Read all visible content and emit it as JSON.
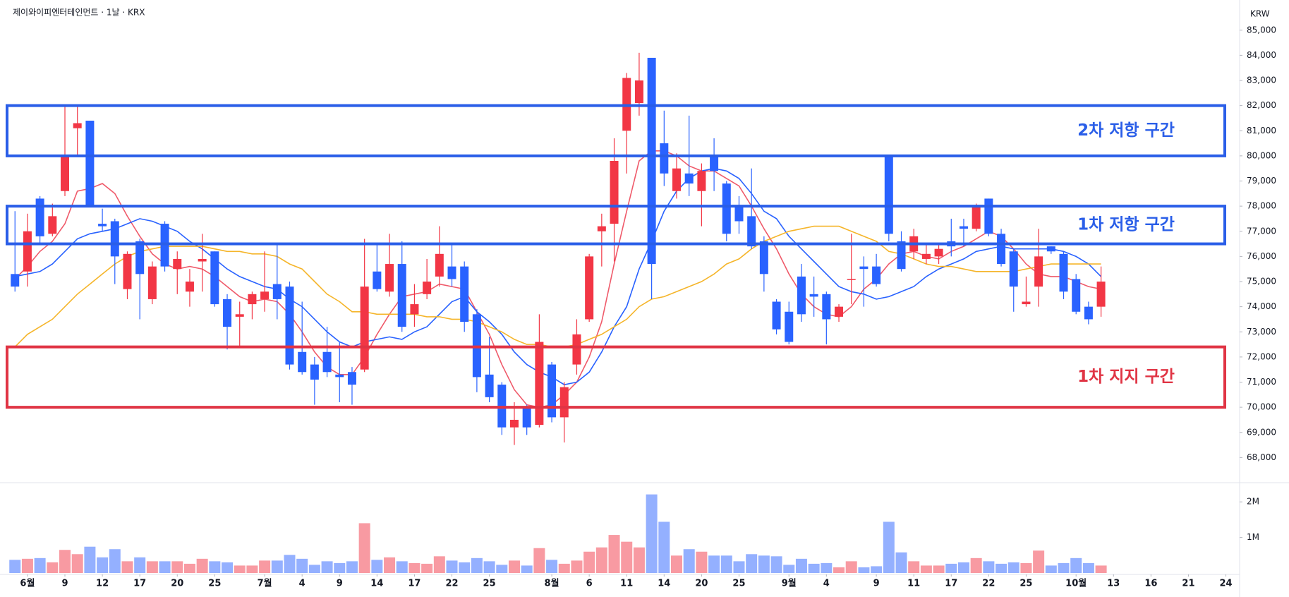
{
  "chart_data": {
    "type": "candlestick",
    "header": "제이와이피엔터테인먼트 · 1날 · KRX",
    "currency": "KRW",
    "up_color": "#f23645",
    "down_color": "#2962ff",
    "xlim": [
      -1.2,
      98.1
    ],
    "ylim": [
      67000,
      86200
    ],
    "volume_lim": [
      0,
      2500000
    ],
    "xticks": [
      {
        "value": 1,
        "label": "6월"
      },
      {
        "value": 4,
        "label": "9"
      },
      {
        "value": 7,
        "label": "12"
      },
      {
        "value": 10,
        "label": "17"
      },
      {
        "value": 13,
        "label": "20"
      },
      {
        "value": 16,
        "label": "25"
      },
      {
        "value": 20,
        "label": "7월"
      },
      {
        "value": 23,
        "label": "4"
      },
      {
        "value": 26,
        "label": "9"
      },
      {
        "value": 29,
        "label": "14"
      },
      {
        "value": 32,
        "label": "17"
      },
      {
        "value": 35,
        "label": "22"
      },
      {
        "value": 38,
        "label": "25"
      },
      {
        "value": 43,
        "label": "8월"
      },
      {
        "value": 46,
        "label": "6"
      },
      {
        "value": 49,
        "label": "11"
      },
      {
        "value": 52,
        "label": "14"
      },
      {
        "value": 55,
        "label": "20"
      },
      {
        "value": 58,
        "label": "25"
      },
      {
        "value": 62,
        "label": "9월"
      },
      {
        "value": 65,
        "label": "4"
      },
      {
        "value": 69,
        "label": "9"
      },
      {
        "value": 72,
        "label": "11"
      },
      {
        "value": 75,
        "label": "17"
      },
      {
        "value": 78,
        "label": "22"
      },
      {
        "value": 81,
        "label": "25"
      },
      {
        "value": 85,
        "label": "10월"
      },
      {
        "value": 88,
        "label": "13"
      },
      {
        "value": 91,
        "label": "16"
      },
      {
        "value": 94,
        "label": "21"
      },
      {
        "value": 97,
        "label": "24"
      }
    ],
    "yticks": [
      {
        "value": 68000,
        "label": "68,000"
      },
      {
        "value": 69000,
        "label": "69,000"
      },
      {
        "value": 70000,
        "label": "70,000"
      },
      {
        "value": 71000,
        "label": "71,000"
      },
      {
        "value": 72000,
        "label": "72,000"
      },
      {
        "value": 73000,
        "label": "73,000"
      },
      {
        "value": 74000,
        "label": "74,000"
      },
      {
        "value": 75000,
        "label": "75,000"
      },
      {
        "value": 76000,
        "label": "76,000"
      },
      {
        "value": 77000,
        "label": "77,000"
      },
      {
        "value": 78000,
        "label": "78,000"
      },
      {
        "value": 79000,
        "label": "79,000"
      },
      {
        "value": 80000,
        "label": "80,000"
      },
      {
        "value": 81000,
        "label": "81,000"
      },
      {
        "value": 82000,
        "label": "82,000"
      },
      {
        "value": 83000,
        "label": "83,000"
      },
      {
        "value": 84000,
        "label": "84,000"
      },
      {
        "value": 85000,
        "label": "85,000"
      }
    ],
    "volume_ticks": [
      {
        "value": 1000000,
        "label": "1M"
      },
      {
        "value": 2000000,
        "label": "2M"
      }
    ],
    "open": [
      75300,
      75400,
      78300,
      76900,
      78600,
      81100,
      81400,
      77300,
      77400,
      74700,
      76600,
      74300,
      77300,
      75500,
      74600,
      75800,
      76200,
      74300,
      73600,
      74100,
      74300,
      74900,
      74800,
      72200,
      71700,
      72200,
      71300,
      71400,
      71500,
      75400,
      74600,
      75700,
      73700,
      74500,
      75200,
      75600,
      75600,
      73700,
      71300,
      70900,
      69200,
      70000,
      69300,
      71700,
      69600,
      71700,
      73500,
      77000,
      77300,
      81000,
      82100,
      83900,
      80500,
      78600,
      79300,
      78600,
      80000,
      78900,
      78000,
      77600,
      76600,
      74200,
      73800,
      75200,
      74500,
      74500,
      73600,
      75100,
      75600,
      75600,
      80000,
      76600,
      76200,
      75900,
      76000,
      76600,
      77200,
      77100,
      78300,
      76900,
      76200,
      74100,
      74800,
      76400,
      76100,
      75100,
      74000,
      74000
    ],
    "high": [
      77800,
      77700,
      78400,
      78100,
      82000,
      82000,
      81400,
      77900,
      77500,
      76200,
      76700,
      75800,
      77400,
      76200,
      75500,
      76900,
      76200,
      74500,
      74200,
      74600,
      76200,
      76500,
      75000,
      74200,
      72000,
      73200,
      72600,
      71600,
      76700,
      76500,
      76900,
      76600,
      74900,
      75900,
      77200,
      76500,
      75800,
      73900,
      72800,
      71000,
      70200,
      70100,
      73700,
      71800,
      71000,
      73500,
      76100,
      77700,
      80700,
      83300,
      84100,
      83900,
      81800,
      80100,
      81600,
      79700,
      80700,
      79000,
      78400,
      79500,
      76800,
      74300,
      74200,
      75700,
      75200,
      74600,
      74100,
      76900,
      76000,
      76100,
      80000,
      77000,
      77100,
      76500,
      76500,
      77500,
      77500,
      78100,
      78300,
      77100,
      76300,
      75200,
      77100,
      76400,
      76200,
      75300,
      74200,
      75600
    ],
    "low": [
      74600,
      74800,
      76500,
      76800,
      78400,
      80000,
      78000,
      77000,
      74900,
      74300,
      73500,
      74100,
      75400,
      74500,
      74000,
      74600,
      74000,
      72300,
      72400,
      73500,
      73800,
      73500,
      71500,
      71300,
      70100,
      71200,
      70200,
      70100,
      71400,
      74600,
      74400,
      73000,
      73200,
      74300,
      74800,
      74800,
      73000,
      70600,
      70200,
      68900,
      68500,
      68900,
      69200,
      69400,
      68600,
      71300,
      73400,
      75600,
      75800,
      79300,
      81600,
      74300,
      78800,
      78300,
      78400,
      77200,
      78600,
      76600,
      76900,
      76300,
      74600,
      72900,
      72500,
      73400,
      73600,
      72500,
      73400,
      74100,
      74000,
      74800,
      76600,
      75400,
      75900,
      75700,
      75700,
      76000,
      76400,
      77000,
      76800,
      75600,
      73800,
      74000,
      74000,
      76100,
      74300,
      73700,
      73300,
      73600
    ],
    "close": [
      74800,
      77000,
      76800,
      77600,
      80000,
      81300,
      78000,
      77200,
      76000,
      76100,
      75300,
      75600,
      75600,
      75900,
      75000,
      75900,
      74100,
      73200,
      73700,
      74500,
      74600,
      74300,
      71700,
      71400,
      71100,
      71400,
      71200,
      70900,
      74800,
      74700,
      75700,
      73200,
      74100,
      75000,
      76100,
      75100,
      73400,
      71200,
      70400,
      69200,
      69500,
      69200,
      72600,
      69600,
      70800,
      72900,
      76000,
      77200,
      79800,
      83100,
      83000,
      75700,
      79300,
      79500,
      78900,
      79400,
      79400,
      76900,
      77400,
      76400,
      75300,
      73100,
      72600,
      73700,
      74400,
      73500,
      74000,
      75100,
      75500,
      74900,
      76900,
      75500,
      76800,
      76100,
      76300,
      76400,
      77100,
      78000,
      76900,
      75700,
      74800,
      74200,
      76000,
      76200,
      74600,
      73800,
      73500,
      75000
    ],
    "volume": [
      370000,
      400000,
      420000,
      300000,
      650000,
      530000,
      740000,
      440000,
      670000,
      330000,
      440000,
      330000,
      330000,
      330000,
      260000,
      400000,
      330000,
      300000,
      210000,
      210000,
      350000,
      350000,
      510000,
      400000,
      230000,
      330000,
      280000,
      330000,
      1400000,
      370000,
      440000,
      330000,
      280000,
      260000,
      470000,
      350000,
      300000,
      420000,
      330000,
      230000,
      350000,
      210000,
      700000,
      370000,
      260000,
      350000,
      600000,
      720000,
      1070000,
      880000,
      720000,
      2210000,
      1440000,
      490000,
      670000,
      600000,
      490000,
      490000,
      330000,
      530000,
      490000,
      470000,
      230000,
      400000,
      260000,
      280000,
      160000,
      330000,
      160000,
      190000,
      1440000,
      580000,
      330000,
      210000,
      210000,
      260000,
      300000,
      420000,
      330000,
      260000,
      300000,
      280000,
      630000,
      210000,
      280000,
      420000,
      280000,
      210000
    ],
    "lines": [
      {
        "color": "#ef5a6a",
        "values": [
          75100,
          75600,
          76200,
          76600,
          77300,
          78600,
          78700,
          78900,
          78500,
          77600,
          76800,
          76100,
          75700,
          75500,
          75600,
          75500,
          75200,
          74800,
          74400,
          74200,
          74300,
          74200,
          73700,
          73000,
          72200,
          71600,
          71300,
          71300,
          72000,
          72900,
          73700,
          74400,
          74500,
          74600,
          74900,
          74800,
          74700,
          73800,
          72900,
          71700,
          70700,
          70100,
          70000,
          70100,
          70500,
          71000,
          72000,
          73400,
          75700,
          77800,
          79800,
          80200,
          80200,
          80000,
          79600,
          79400,
          79400,
          79100,
          78800,
          78000,
          77100,
          76300,
          75300,
          74500,
          74000,
          73700,
          73600,
          74000,
          74700,
          75100,
          75700,
          76100,
          76200,
          76000,
          75900,
          76200,
          76400,
          76700,
          77000,
          76800,
          76300,
          75700,
          75300,
          75200,
          75200,
          75000,
          74800,
          74700
        ]
      },
      {
        "color": "#2962ff",
        "values": [
          75200,
          75300,
          75400,
          75700,
          76200,
          76700,
          76900,
          77000,
          77100,
          77300,
          77500,
          77400,
          77200,
          77000,
          76600,
          76300,
          75900,
          75500,
          75200,
          75000,
          74800,
          74700,
          74300,
          74000,
          73500,
          73000,
          72600,
          72400,
          72600,
          72700,
          72800,
          72700,
          73000,
          73200,
          73700,
          74200,
          74400,
          73800,
          73400,
          72900,
          72200,
          71700,
          71400,
          71200,
          70900,
          71000,
          71400,
          72200,
          73200,
          74000,
          75500,
          76600,
          77800,
          78600,
          79100,
          79400,
          79500,
          79400,
          79100,
          78500,
          77800,
          77500,
          76800,
          76300,
          75800,
          75300,
          74800,
          74600,
          74500,
          74300,
          74400,
          74600,
          74800,
          75200,
          75500,
          75700,
          75900,
          76200,
          76300,
          76400,
          76300,
          76300,
          76300,
          76300,
          76200,
          76000,
          75700,
          75200
        ]
      },
      {
        "color": "#f5b52a",
        "values": [
          72400,
          72900,
          73200,
          73500,
          74000,
          74500,
          74900,
          75300,
          75700,
          76000,
          76200,
          76300,
          76400,
          76400,
          76400,
          76400,
          76300,
          76200,
          76200,
          76100,
          76100,
          76000,
          75700,
          75500,
          75000,
          74500,
          74200,
          73800,
          73800,
          73700,
          73700,
          73700,
          73700,
          73600,
          73600,
          73500,
          73500,
          73400,
          73200,
          73000,
          72700,
          72500,
          72500,
          72400,
          72400,
          72500,
          72700,
          72900,
          73200,
          73500,
          74000,
          74300,
          74400,
          74600,
          74800,
          75000,
          75300,
          75700,
          75900,
          76300,
          76600,
          76800,
          77000,
          77100,
          77200,
          77200,
          77200,
          77000,
          76800,
          76600,
          76200,
          76100,
          75900,
          75700,
          75600,
          75600,
          75500,
          75400,
          75400,
          75400,
          75400,
          75500,
          75600,
          75700,
          75700,
          75700,
          75700,
          75700
        ]
      }
    ],
    "zones": [
      {
        "label": "2차 저항 구간",
        "low": 80000,
        "high": 82000,
        "color": "#2a5ee8"
      },
      {
        "label": "1차 저항 구간",
        "low": 76500,
        "high": 78000,
        "color": "#2a5ee8"
      },
      {
        "label": "1차 지지 구간",
        "low": 70000,
        "high": 72400,
        "color": "#e03444"
      }
    ]
  }
}
